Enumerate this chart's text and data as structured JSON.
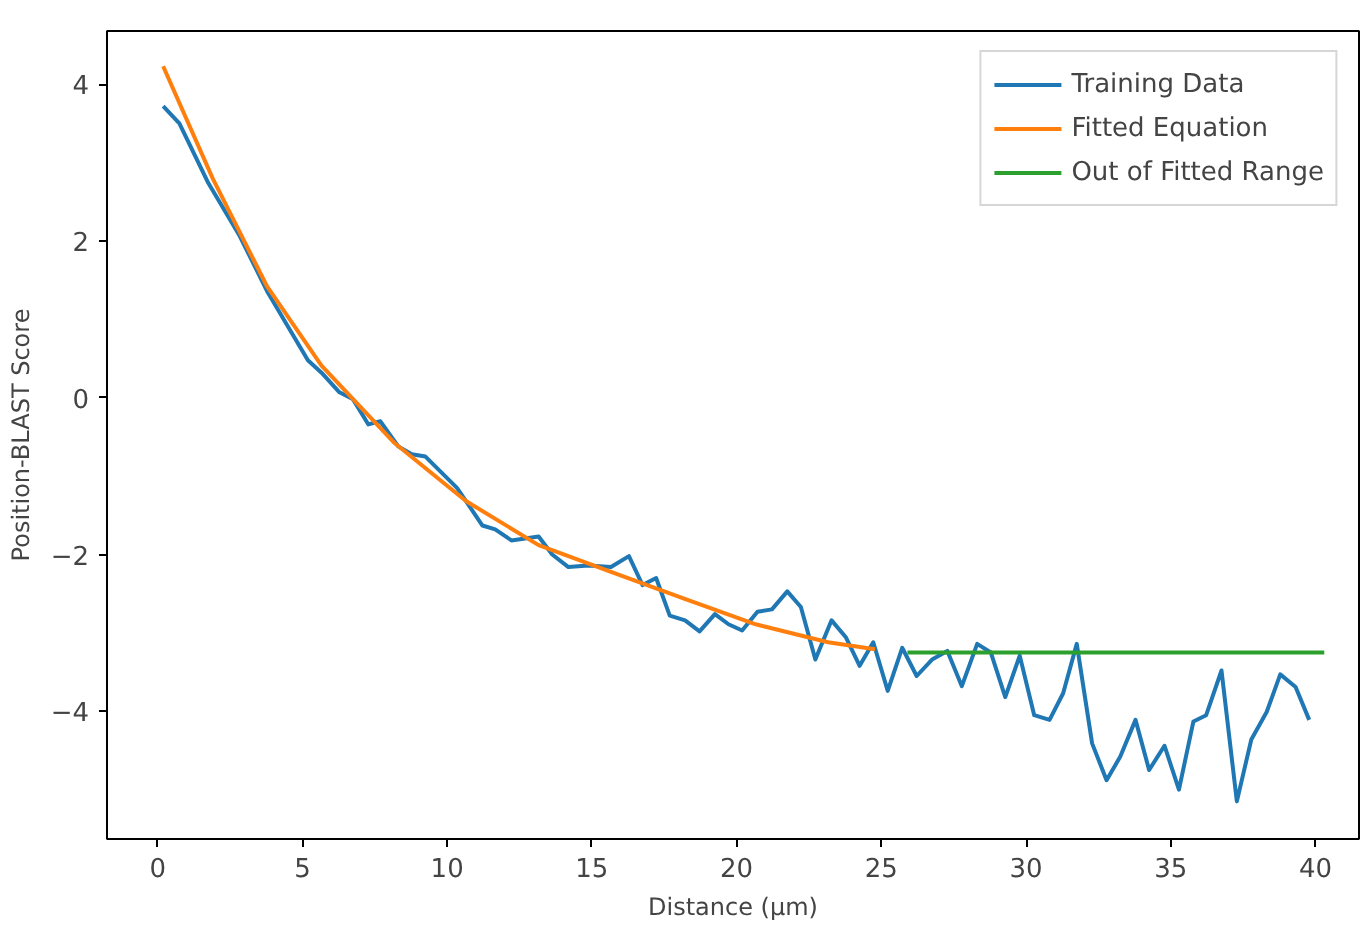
{
  "chart_data": {
    "type": "line",
    "xlabel": "Distance (µm)",
    "ylabel": "Position-BLAST Score",
    "xlim": [
      -1.75,
      41.5
    ],
    "ylim": [
      -5.63,
      4.68
    ],
    "xticks": [
      0,
      5,
      10,
      15,
      20,
      25,
      30,
      35,
      40
    ],
    "yticks": [
      {
        "value": -4,
        "label": "−4"
      },
      {
        "value": -2,
        "label": "−2"
      },
      0,
      2,
      4
    ],
    "grid": false,
    "legend": "top right",
    "series": [
      {
        "name": "Training Data",
        "color": "#1f77b4",
        "x": [
          0.19,
          0.75,
          1.75,
          2.84,
          3.78,
          5.19,
          5.66,
          6.28,
          6.75,
          7.28,
          7.69,
          8.31,
          8.78,
          9.25,
          10.34,
          11.22,
          11.66,
          12.22,
          13.16,
          13.63,
          14.19,
          14.88,
          15.66,
          16.28,
          16.75,
          17.22,
          17.69,
          18.22,
          18.72,
          19.25,
          19.72,
          20.19,
          20.72,
          21.22,
          21.75,
          22.22,
          22.72,
          23.28,
          23.78,
          24.25,
          24.72,
          25.22,
          25.72,
          26.22,
          26.75,
          27.28,
          27.78,
          28.31,
          28.78,
          29.28,
          29.78,
          30.28,
          30.81,
          31.28,
          31.75,
          32.28,
          32.78,
          33.25,
          33.78,
          34.25,
          34.78,
          35.28,
          35.78,
          36.22,
          36.75,
          37.28,
          37.78,
          38.31,
          38.78,
          39.31,
          39.78
        ],
        "values": [
          3.72,
          3.5,
          2.74,
          2.06,
          1.36,
          0.48,
          0.32,
          0.07,
          -0.02,
          -0.34,
          -0.3,
          -0.62,
          -0.72,
          -0.75,
          -1.15,
          -1.63,
          -1.68,
          -1.82,
          -1.77,
          -2.0,
          -2.16,
          -2.14,
          -2.16,
          -2.02,
          -2.39,
          -2.3,
          -2.78,
          -2.84,
          -2.98,
          -2.76,
          -2.89,
          -2.97,
          -2.73,
          -2.7,
          -2.47,
          -2.67,
          -3.34,
          -2.84,
          -3.06,
          -3.42,
          -3.12,
          -3.74,
          -3.19,
          -3.55,
          -3.34,
          -3.23,
          -3.68,
          -3.14,
          -3.25,
          -3.82,
          -3.29,
          -4.05,
          -4.11,
          -3.77,
          -3.14,
          -4.41,
          -4.88,
          -4.58,
          -4.11,
          -4.75,
          -4.44,
          -5.0,
          -4.13,
          -4.05,
          -3.48,
          -5.15,
          -4.36,
          -4.01,
          -3.53,
          -3.69,
          -4.11
        ]
      },
      {
        "name": "Fitted Equation",
        "color": "#ff7f0e",
        "x": [
          0.19,
          1.9,
          3.78,
          5.66,
          8.16,
          10.66,
          13.16,
          15.66,
          18.16,
          20.66,
          23.16,
          24.78
        ],
        "values": [
          4.23,
          2.8,
          1.42,
          0.41,
          -0.57,
          -1.32,
          -1.88,
          -2.22,
          -2.56,
          -2.89,
          -3.12,
          -3.21
        ]
      },
      {
        "name": "Out of Fitted Range",
        "color": "#2ca02c",
        "x": [
          25.9,
          40.3
        ],
        "values": [
          -3.25,
          -3.25
        ]
      }
    ]
  }
}
